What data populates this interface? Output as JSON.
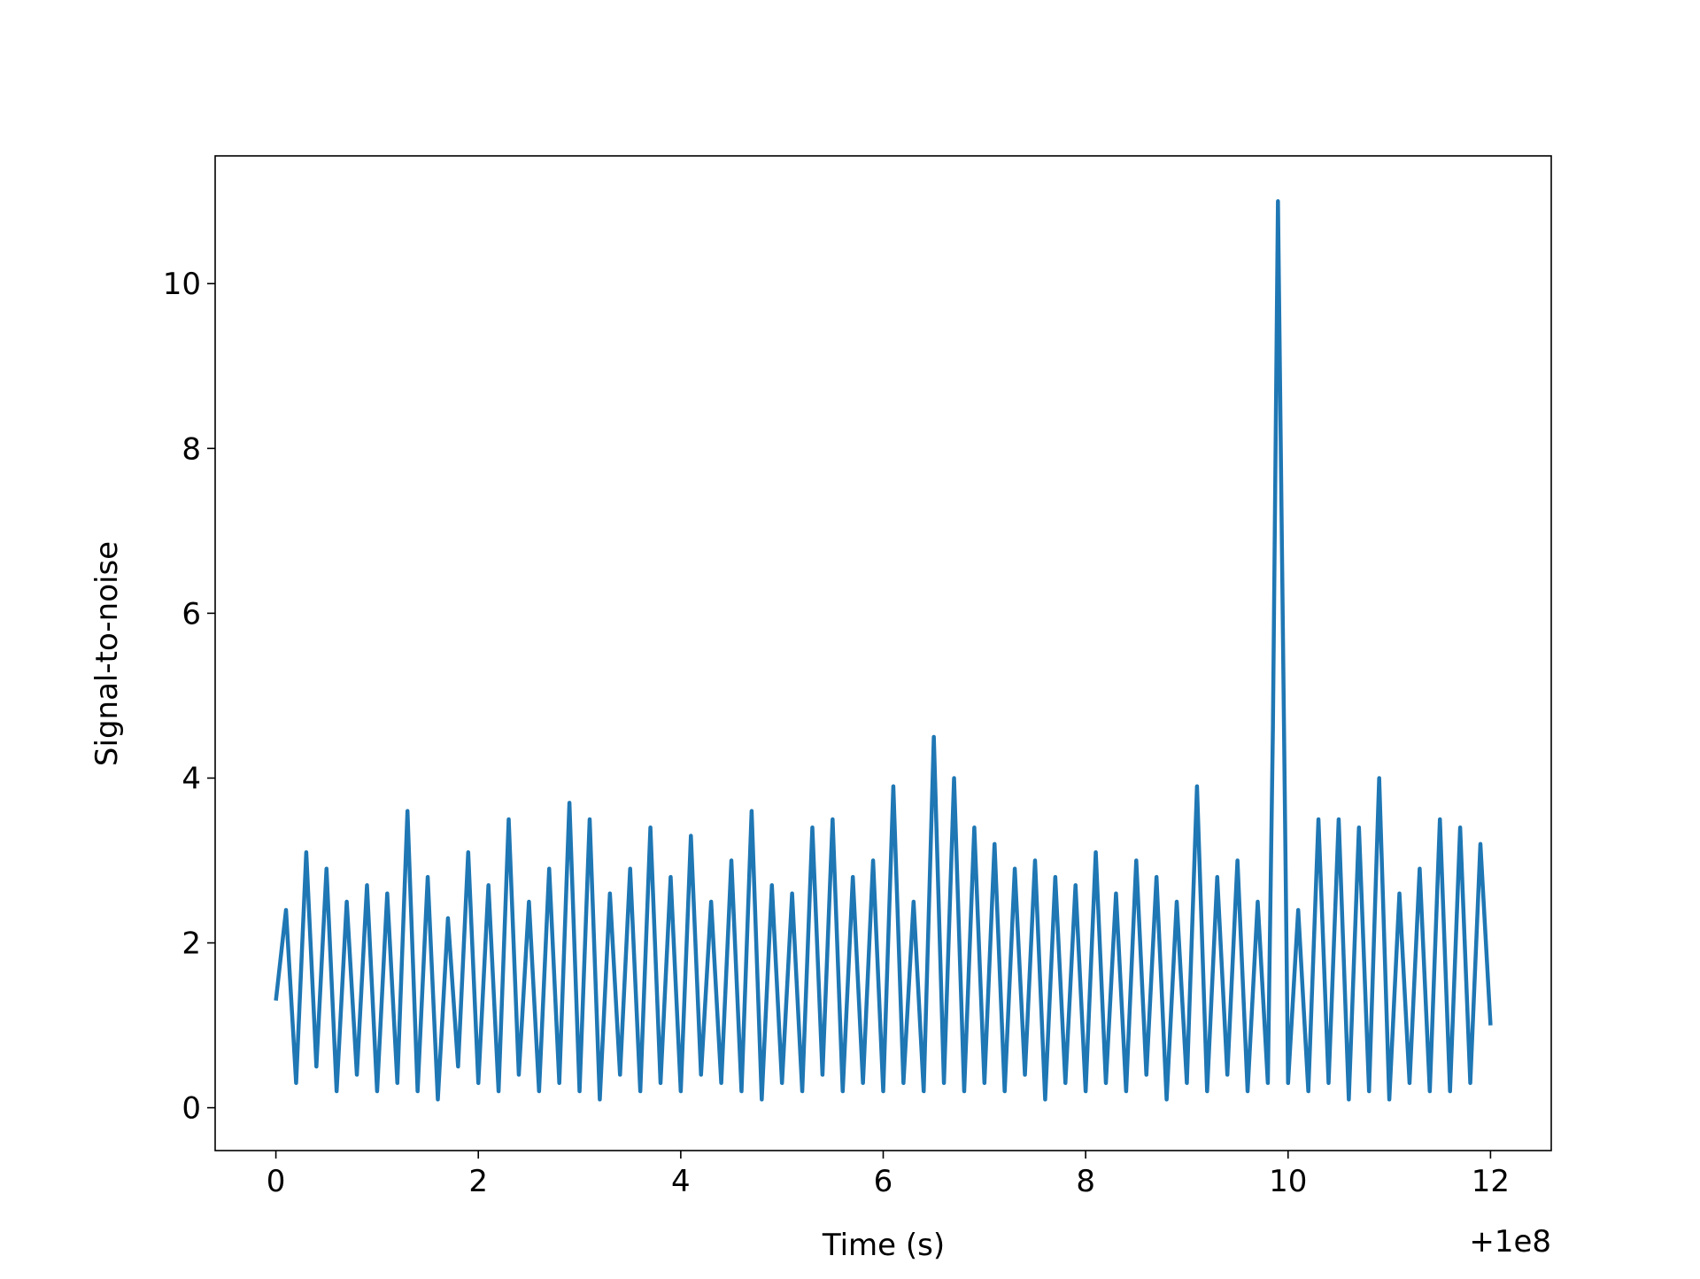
{
  "chart_data": {
    "type": "line",
    "xlabel": "Time (s)",
    "ylabel": "Signal-to-noise",
    "x_offset_label": "+1e8",
    "x": [
      0,
      0.1,
      0.2,
      0.3,
      0.4,
      0.5,
      0.6,
      0.7,
      0.8,
      0.9,
      1,
      1.1,
      1.2,
      1.3,
      1.4,
      1.5,
      1.6,
      1.7,
      1.8,
      1.9,
      2,
      2.1,
      2.2,
      2.3,
      2.4,
      2.5,
      2.6,
      2.7,
      2.8,
      2.9,
      3,
      3.1,
      3.2,
      3.3,
      3.4,
      3.5,
      3.6,
      3.7,
      3.8,
      3.9,
      4,
      4.1,
      4.2,
      4.3,
      4.4,
      4.5,
      4.6,
      4.7,
      4.8,
      4.9,
      5,
      5.1,
      5.2,
      5.3,
      5.4,
      5.5,
      5.6,
      5.7,
      5.8,
      5.9,
      6,
      6.1,
      6.2,
      6.3,
      6.4,
      6.5,
      6.6,
      6.7,
      6.8,
      6.9,
      7,
      7.1,
      7.2,
      7.3,
      7.4,
      7.5,
      7.6,
      7.7,
      7.8,
      7.9,
      8,
      8.1,
      8.2,
      8.3,
      8.4,
      8.5,
      8.6,
      8.7,
      8.8,
      8.9,
      9,
      9.1,
      9.2,
      9.3,
      9.4,
      9.5,
      9.6,
      9.7,
      9.8,
      9.85,
      9.9,
      10,
      10.1,
      10.2,
      10.3,
      10.4,
      10.5,
      10.6,
      10.7,
      10.8,
      10.9,
      11,
      11.1,
      11.2,
      11.3,
      11.4,
      11.5,
      11.6,
      11.7,
      11.8,
      11.9,
      12
    ],
    "series": [
      {
        "color": "#1f77b4",
        "values": [
          1.3,
          2.4,
          0.3,
          3.1,
          0.5,
          2.9,
          0.2,
          2.5,
          0.4,
          2.7,
          0.2,
          2.6,
          0.3,
          3.6,
          0.2,
          2.8,
          0.1,
          2.3,
          0.5,
          3.1,
          0.3,
          2.7,
          0.2,
          3.5,
          0.4,
          2.5,
          0.2,
          2.9,
          0.3,
          3.7,
          0.2,
          3.5,
          0.1,
          2.6,
          0.4,
          2.9,
          0.2,
          3.4,
          0.3,
          2.8,
          0.2,
          3.3,
          0.4,
          2.5,
          0.3,
          3.0,
          0.2,
          3.6,
          0.1,
          2.7,
          0.3,
          2.6,
          0.2,
          3.4,
          0.4,
          3.5,
          0.2,
          2.8,
          0.3,
          3.0,
          0.2,
          3.9,
          0.3,
          2.5,
          0.2,
          4.5,
          0.3,
          4.0,
          0.2,
          3.4,
          0.3,
          3.2,
          0.2,
          2.9,
          0.4,
          3.0,
          0.1,
          2.8,
          0.3,
          2.7,
          0.2,
          3.1,
          0.3,
          2.6,
          0.2,
          3.0,
          0.4,
          2.8,
          0.1,
          2.5,
          0.3,
          3.9,
          0.2,
          2.8,
          0.4,
          3.0,
          0.2,
          2.5,
          0.3,
          4.6,
          11.0,
          0.3,
          2.4,
          0.2,
          3.5,
          0.3,
          3.5,
          0.1,
          3.4,
          0.2,
          4.0,
          0.1,
          2.6,
          0.3,
          2.9,
          0.2,
          3.5,
          0.2,
          3.4,
          0.3,
          3.2,
          1.0
        ]
      }
    ],
    "xlim": [
      -0.6,
      12.6
    ],
    "ylim": [
      -0.52,
      11.55
    ],
    "xticks": [
      0,
      2,
      4,
      6,
      8,
      10,
      12
    ],
    "yticks": [
      0,
      2,
      4,
      6,
      8,
      10
    ]
  }
}
